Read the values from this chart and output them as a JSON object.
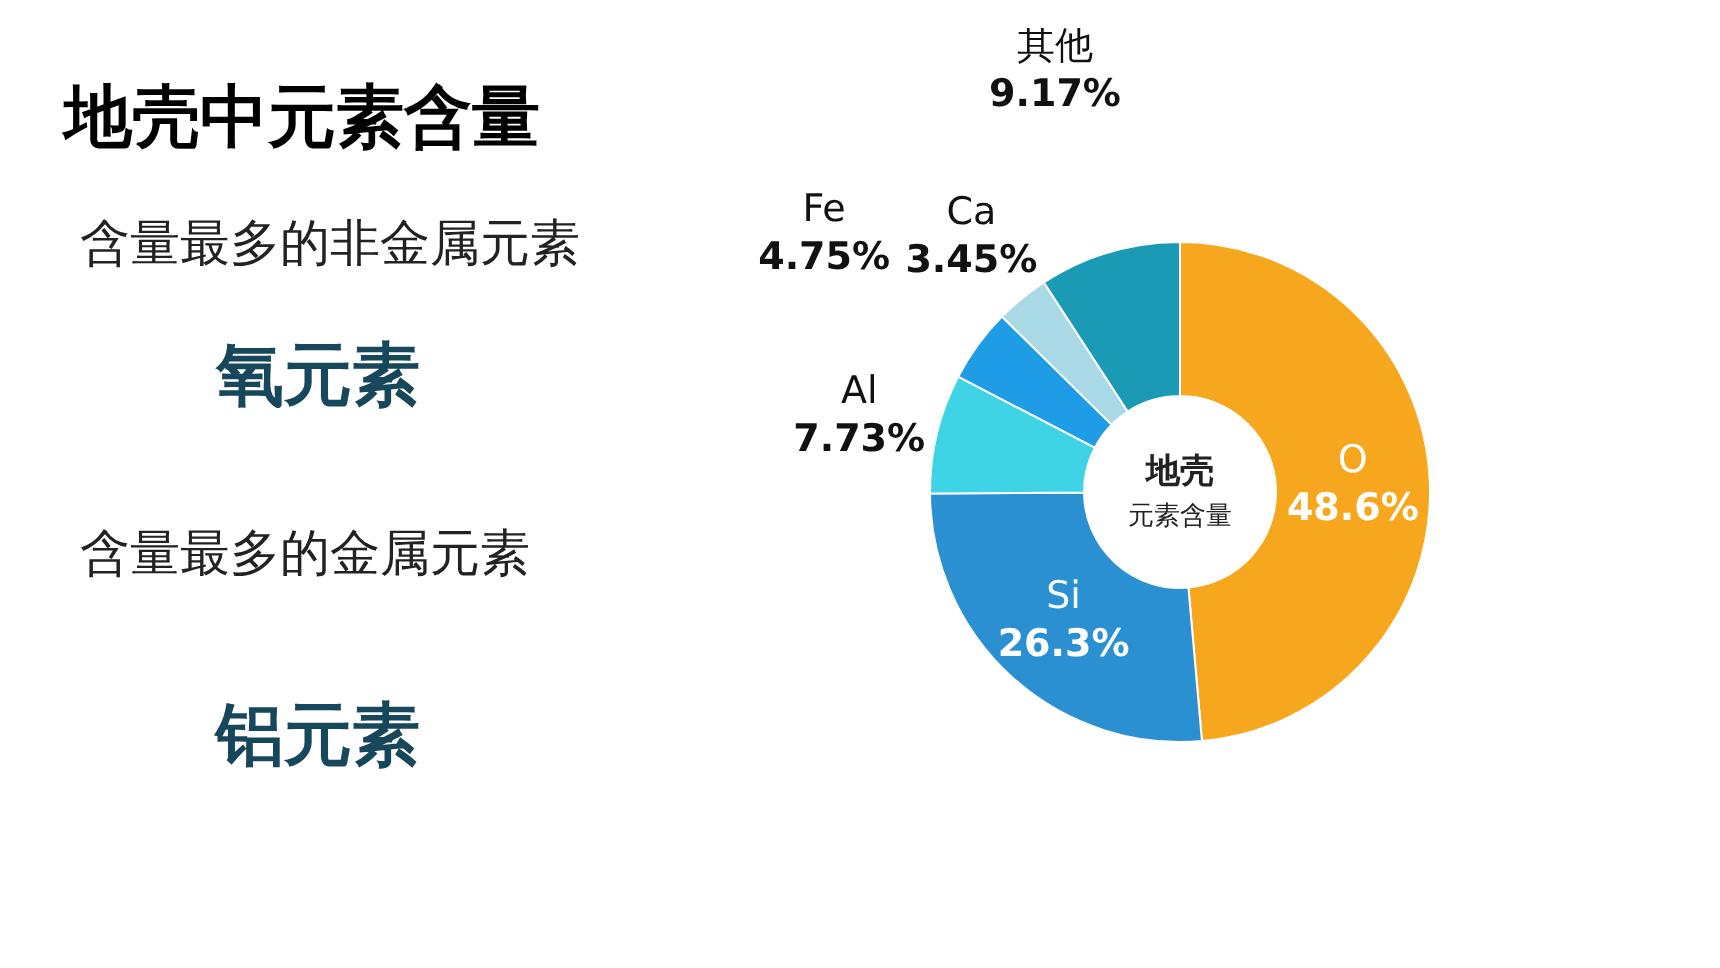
{
  "chart_data": {
    "type": "donut",
    "title": "地壳中元素含量",
    "categories": [
      "O",
      "Si",
      "Al",
      "Fe",
      "Ca",
      "其他"
    ],
    "values": [
      48.6,
      26.3,
      7.73,
      4.75,
      3.45,
      9.17
    ],
    "value_labels": [
      "48.6%",
      "26.3%",
      "7.73%",
      "4.75%",
      "3.45%",
      "9.17%"
    ],
    "colors": [
      "#f7a71e",
      "#2a90d2",
      "#3fd3e6",
      "#1e9ce6",
      "#a9d9e6",
      "#1b9ab6"
    ],
    "annotations": [
      "地壳",
      "元素含量",
      "含量最多的非金属元素",
      "氧元素",
      "含量最多的金属元素",
      "铝元素"
    ]
  }
}
